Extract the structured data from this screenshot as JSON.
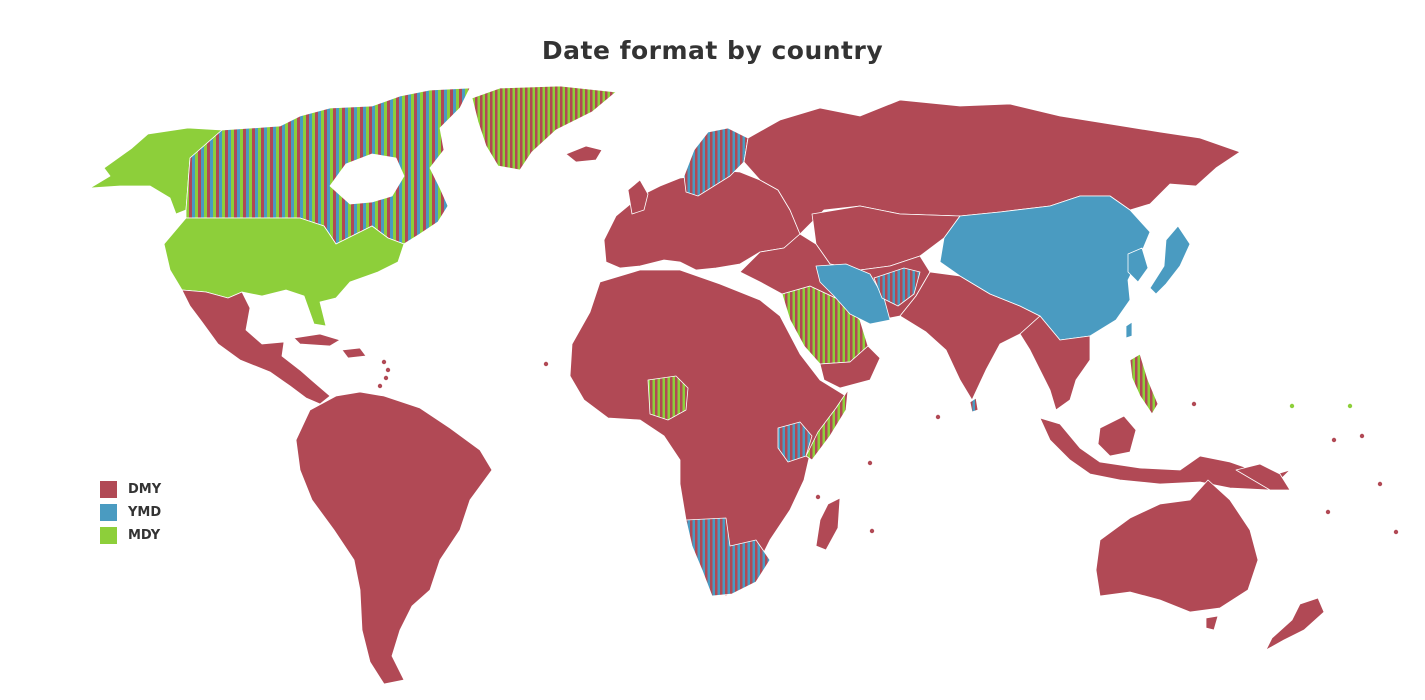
{
  "title": "Date format by country",
  "legend": {
    "items": [
      {
        "key": "DMY",
        "label": "DMY",
        "color": "#b14955"
      },
      {
        "key": "YMD",
        "label": "YMD",
        "color": "#4a9bc1"
      },
      {
        "key": "MDY",
        "label": "MDY",
        "color": "#8dcf3a"
      }
    ]
  },
  "colors": {
    "dmy": "#b14955",
    "ymd": "#4a9bc1",
    "mdy": "#8dcf3a",
    "mixed_stripe_green": "#8d9e3a",
    "mixed_stripe_olive": "#a28a2e",
    "background": "#ffffff"
  },
  "regions": [
    {
      "name": "Alaska",
      "format": "MDY"
    },
    {
      "name": "Canada",
      "format": "DMY/YMD/MDY"
    },
    {
      "name": "Greenland",
      "format": "DMY/MDY"
    },
    {
      "name": "United States",
      "format": "MDY"
    },
    {
      "name": "Mexico & Central America",
      "format": "DMY"
    },
    {
      "name": "South America",
      "format": "DMY"
    },
    {
      "name": "Europe",
      "format": "DMY"
    },
    {
      "name": "Scandinavia",
      "format": "DMY/YMD"
    },
    {
      "name": "Russia",
      "format": "DMY"
    },
    {
      "name": "Africa",
      "format": "DMY"
    },
    {
      "name": "Saudi Arabia",
      "format": "DMY/MDY"
    },
    {
      "name": "Nigeria",
      "format": "DMY/MDY"
    },
    {
      "name": "Somalia",
      "format": "DMY/MDY"
    },
    {
      "name": "Kenya",
      "format": "DMY/YMD"
    },
    {
      "name": "Southern Africa",
      "format": "DMY/YMD"
    },
    {
      "name": "Iran",
      "format": "YMD"
    },
    {
      "name": "Afghanistan",
      "format": "DMY/YMD"
    },
    {
      "name": "China & Mongolia",
      "format": "YMD"
    },
    {
      "name": "Korea & Japan",
      "format": "YMD"
    },
    {
      "name": "Taiwan",
      "format": "YMD"
    },
    {
      "name": "Philippines",
      "format": "DMY/MDY"
    },
    {
      "name": "South & Southeast Asia",
      "format": "DMY"
    },
    {
      "name": "Indonesia",
      "format": "DMY"
    },
    {
      "name": "Australia & New Zealand",
      "format": "DMY"
    }
  ]
}
